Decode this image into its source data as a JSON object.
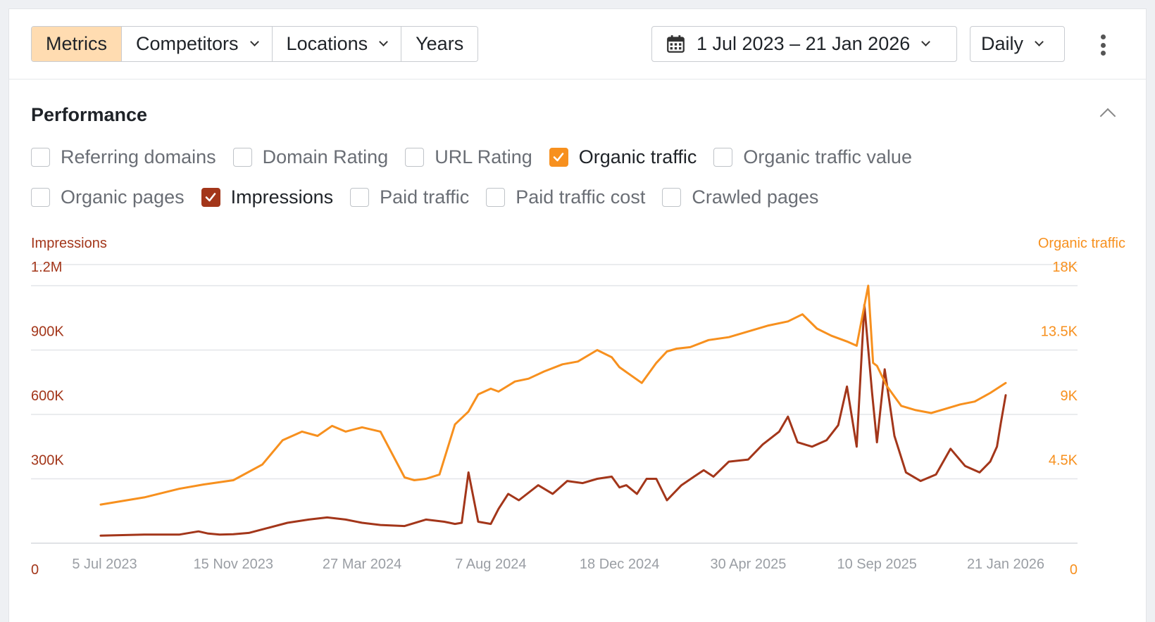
{
  "toolbar": {
    "tabs": [
      {
        "label": "Metrics",
        "active": true,
        "dropdown": false
      },
      {
        "label": "Competitors",
        "active": false,
        "dropdown": true
      },
      {
        "label": "Locations",
        "active": false,
        "dropdown": true
      },
      {
        "label": "Years",
        "active": false,
        "dropdown": false
      }
    ],
    "date_range": "1 Jul 2023 – 21 Jan 2026",
    "date_icon": "calendar-icon",
    "interval": "Daily",
    "more_icon": "kebab-menu-icon"
  },
  "section": {
    "title": "Performance",
    "collapse_icon": "chevron-up-icon"
  },
  "metrics_row1": [
    {
      "label": "Referring domains",
      "checked": false
    },
    {
      "label": "Domain Rating",
      "checked": false
    },
    {
      "label": "URL Rating",
      "checked": false
    },
    {
      "label": "Organic traffic",
      "checked": true,
      "color": "#f7901e"
    },
    {
      "label": "Organic traffic value",
      "checked": false
    }
  ],
  "metrics_row2": [
    {
      "label": "Organic pages",
      "checked": false
    },
    {
      "label": "Impressions",
      "checked": true,
      "color": "#a3361a"
    },
    {
      "label": "Paid traffic",
      "checked": false
    },
    {
      "label": "Paid traffic cost",
      "checked": false
    },
    {
      "label": "Crawled pages",
      "checked": false
    }
  ],
  "chart_data": {
    "type": "line",
    "x_ticks": [
      "5 Jul 2023",
      "15 Nov 2023",
      "27 Mar 2024",
      "7 Aug 2024",
      "18 Dec 2024",
      "30 Apr 2025",
      "10 Sep 2025",
      "21 Jan 2026"
    ],
    "x_tick_dates": [
      "2023-07-05",
      "2023-11-15",
      "2024-03-27",
      "2024-08-07",
      "2024-12-18",
      "2025-04-30",
      "2025-09-10",
      "2026-01-21"
    ],
    "xlim": [
      "2023-07-01",
      "2026-01-21"
    ],
    "left_axis": {
      "title": "Impressions",
      "ticks": [
        "0",
        "300K",
        "600K",
        "900K",
        "1.2M"
      ],
      "tick_values": [
        0,
        300000,
        600000,
        900000,
        1200000
      ],
      "ylim": [
        0,
        1200000
      ],
      "color": "#a3361a"
    },
    "right_axis": {
      "title": "Organic traffic",
      "ticks": [
        "0",
        "4.5K",
        "9K",
        "13.5K",
        "18K"
      ],
      "tick_values": [
        0,
        4500,
        9000,
        13500,
        18000
      ],
      "ylim": [
        0,
        18000
      ],
      "color": "#f7901e"
    },
    "grid": true,
    "series": [
      {
        "name": "Impressions",
        "axis": "left",
        "color": "#a3361a",
        "x": [
          "2023-07-01",
          "2023-08-15",
          "2023-09-20",
          "2023-10-10",
          "2023-10-20",
          "2023-11-01",
          "2023-11-15",
          "2023-12-01",
          "2023-12-20",
          "2024-01-10",
          "2024-02-01",
          "2024-02-20",
          "2024-03-10",
          "2024-03-27",
          "2024-04-15",
          "2024-05-10",
          "2024-06-01",
          "2024-06-20",
          "2024-07-01",
          "2024-07-08",
          "2024-07-15",
          "2024-07-25",
          "2024-08-07",
          "2024-08-15",
          "2024-08-25",
          "2024-09-05",
          "2024-09-25",
          "2024-10-10",
          "2024-10-25",
          "2024-11-10",
          "2024-11-25",
          "2024-12-10",
          "2024-12-18",
          "2024-12-25",
          "2025-01-05",
          "2025-01-15",
          "2025-01-25",
          "2025-02-05",
          "2025-02-20",
          "2025-03-05",
          "2025-03-15",
          "2025-03-25",
          "2025-04-10",
          "2025-04-30",
          "2025-05-15",
          "2025-06-01",
          "2025-06-10",
          "2025-06-20",
          "2025-07-05",
          "2025-07-20",
          "2025-08-01",
          "2025-08-10",
          "2025-08-20",
          "2025-08-28",
          "2025-09-05",
          "2025-09-10",
          "2025-09-18",
          "2025-09-28",
          "2025-10-10",
          "2025-10-25",
          "2025-11-10",
          "2025-11-25",
          "2025-12-10",
          "2025-12-25",
          "2026-01-05",
          "2026-01-12",
          "2026-01-16",
          "2026-01-21"
        ],
        "values": [
          35000,
          40000,
          40000,
          55000,
          45000,
          40000,
          42000,
          48000,
          70000,
          95000,
          110000,
          120000,
          110000,
          95000,
          85000,
          80000,
          110000,
          100000,
          90000,
          95000,
          330000,
          100000,
          90000,
          160000,
          230000,
          200000,
          270000,
          230000,
          290000,
          280000,
          300000,
          310000,
          260000,
          270000,
          230000,
          300000,
          300000,
          200000,
          270000,
          310000,
          340000,
          310000,
          380000,
          390000,
          460000,
          520000,
          590000,
          470000,
          450000,
          480000,
          550000,
          730000,
          450000,
          1110000,
          700000,
          470000,
          810000,
          500000,
          330000,
          290000,
          320000,
          440000,
          360000,
          330000,
          380000,
          450000,
          560000,
          690000
        ]
      },
      {
        "name": "Organic traffic",
        "axis": "right",
        "color": "#f7901e",
        "x": [
          "2023-07-01",
          "2023-08-15",
          "2023-09-20",
          "2023-10-15",
          "2023-11-15",
          "2023-12-15",
          "2024-01-05",
          "2024-01-25",
          "2024-02-10",
          "2024-02-25",
          "2024-03-10",
          "2024-03-27",
          "2024-04-15",
          "2024-05-10",
          "2024-05-20",
          "2024-06-01",
          "2024-06-15",
          "2024-07-01",
          "2024-07-15",
          "2024-07-25",
          "2024-08-07",
          "2024-08-15",
          "2024-09-01",
          "2024-09-15",
          "2024-10-01",
          "2024-10-20",
          "2024-11-05",
          "2024-11-25",
          "2024-12-10",
          "2024-12-18",
          "2025-01-10",
          "2025-01-25",
          "2025-02-05",
          "2025-02-15",
          "2025-03-01",
          "2025-03-20",
          "2025-04-10",
          "2025-04-30",
          "2025-05-20",
          "2025-06-10",
          "2025-06-25",
          "2025-07-10",
          "2025-07-25",
          "2025-08-10",
          "2025-08-20",
          "2025-09-01",
          "2025-09-06",
          "2025-09-10",
          "2025-09-20",
          "2025-10-05",
          "2025-10-20",
          "2025-11-05",
          "2025-11-20",
          "2025-12-05",
          "2025-12-20",
          "2026-01-05",
          "2026-01-21"
        ],
        "values": [
          2700,
          3200,
          3800,
          4100,
          4400,
          5500,
          7200,
          7800,
          7500,
          8200,
          7800,
          8100,
          7800,
          4600,
          4400,
          4500,
          4800,
          8300,
          9200,
          10400,
          10800,
          10600,
          11300,
          11500,
          12000,
          12500,
          12700,
          13500,
          13000,
          12300,
          11200,
          12600,
          13400,
          13600,
          13700,
          14200,
          14400,
          14800,
          15200,
          15500,
          16000,
          15000,
          14500,
          14100,
          13800,
          18000,
          12600,
          12400,
          11000,
          9600,
          9300,
          9100,
          9400,
          9700,
          9900,
          10500,
          11200
        ]
      }
    ]
  }
}
